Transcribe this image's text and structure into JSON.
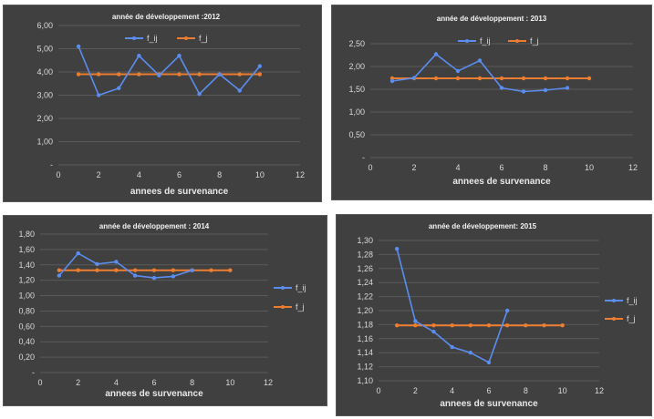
{
  "colors": {
    "f_ij": "#5b8def",
    "f_j": "#ed7d31",
    "background": "#404040"
  },
  "chart_data": [
    {
      "type": "line",
      "title": "année de développement :2012",
      "xlabel": "annees de survenance",
      "ylabel": "",
      "xlim": [
        0,
        12
      ],
      "ylim": [
        0,
        6
      ],
      "xticks": [
        "0",
        "2",
        "4",
        "6",
        "8",
        "10",
        "12"
      ],
      "yticks": [
        "-",
        "1,00",
        "2,00",
        "3,00",
        "4,00",
        "5,00",
        "6,00"
      ],
      "legend_position": "top",
      "series": [
        {
          "name": "f_ij",
          "x": [
            1,
            2,
            3,
            4,
            5,
            6,
            7,
            8,
            9,
            10
          ],
          "y": [
            5.1,
            3.0,
            3.3,
            4.7,
            3.85,
            4.7,
            3.05,
            3.9,
            3.2,
            4.25
          ]
        },
        {
          "name": "f_j",
          "x": [
            1,
            2,
            3,
            4,
            5,
            6,
            7,
            8,
            9,
            10
          ],
          "y": [
            3.9,
            3.9,
            3.9,
            3.9,
            3.9,
            3.9,
            3.9,
            3.9,
            3.9,
            3.9
          ]
        }
      ]
    },
    {
      "type": "line",
      "title": "année de développement : 2013",
      "xlabel": "annees de survenance",
      "ylabel": "",
      "xlim": [
        0,
        12
      ],
      "ylim": [
        0,
        2.5
      ],
      "xticks": [
        "0",
        "2",
        "4",
        "6",
        "8",
        "10",
        "12"
      ],
      "yticks": [
        "-",
        "0,50",
        "1,00",
        "1,50",
        "2,00",
        "2,50"
      ],
      "legend_position": "top",
      "series": [
        {
          "name": "f_ij",
          "x": [
            1,
            2,
            3,
            4,
            5,
            6,
            7,
            8,
            9
          ],
          "y": [
            1.68,
            1.75,
            2.27,
            1.9,
            2.13,
            1.53,
            1.45,
            1.48,
            1.53
          ]
        },
        {
          "name": "f_j",
          "x": [
            1,
            2,
            3,
            4,
            5,
            6,
            7,
            8,
            9,
            10
          ],
          "y": [
            1.74,
            1.74,
            1.74,
            1.74,
            1.74,
            1.74,
            1.74,
            1.74,
            1.74,
            1.74
          ]
        }
      ]
    },
    {
      "type": "line",
      "title": "année de développement :  2014",
      "xlabel": "annees de survenance",
      "ylabel": "",
      "xlim": [
        0,
        12
      ],
      "ylim": [
        0,
        1.8
      ],
      "xticks": [
        "0",
        "2",
        "4",
        "6",
        "8",
        "10",
        "12"
      ],
      "yticks": [
        "-",
        "0,20",
        "0,40",
        "0,60",
        "0,80",
        "1,00",
        "1,20",
        "1,40",
        "1,60",
        "1,80"
      ],
      "legend_position": "right",
      "series": [
        {
          "name": "f_ij",
          "x": [
            1,
            2,
            3,
            4,
            5,
            6,
            7,
            8
          ],
          "y": [
            1.26,
            1.55,
            1.41,
            1.44,
            1.26,
            1.23,
            1.25,
            1.33
          ]
        },
        {
          "name": "f_j",
          "x": [
            1,
            2,
            3,
            4,
            5,
            6,
            7,
            8,
            9,
            10
          ],
          "y": [
            1.33,
            1.33,
            1.33,
            1.33,
            1.33,
            1.33,
            1.33,
            1.33,
            1.33,
            1.33
          ]
        }
      ]
    },
    {
      "type": "line",
      "title": "année de développement: 2015",
      "xlabel": "annees de survenance",
      "ylabel": "",
      "xlim": [
        0,
        12
      ],
      "ylim": [
        1.1,
        1.3
      ],
      "xticks": [
        "0",
        "2",
        "4",
        "6",
        "8",
        "10",
        "12"
      ],
      "yticks": [
        "1,10",
        "1,12",
        "1,14",
        "1,16",
        "1,18",
        "1,20",
        "1,22",
        "1,24",
        "1,26",
        "1,28",
        "1,30"
      ],
      "legend_position": "right",
      "series": [
        {
          "name": "f_ij",
          "x": [
            1,
            2,
            3,
            4,
            5,
            6,
            7
          ],
          "y": [
            1.288,
            1.185,
            1.17,
            1.148,
            1.14,
            1.126,
            1.2
          ]
        },
        {
          "name": "f_j",
          "x": [
            1,
            2,
            3,
            4,
            5,
            6,
            7,
            8,
            9,
            10
          ],
          "y": [
            1.179,
            1.179,
            1.179,
            1.179,
            1.179,
            1.179,
            1.179,
            1.179,
            1.179,
            1.179
          ]
        }
      ]
    }
  ]
}
